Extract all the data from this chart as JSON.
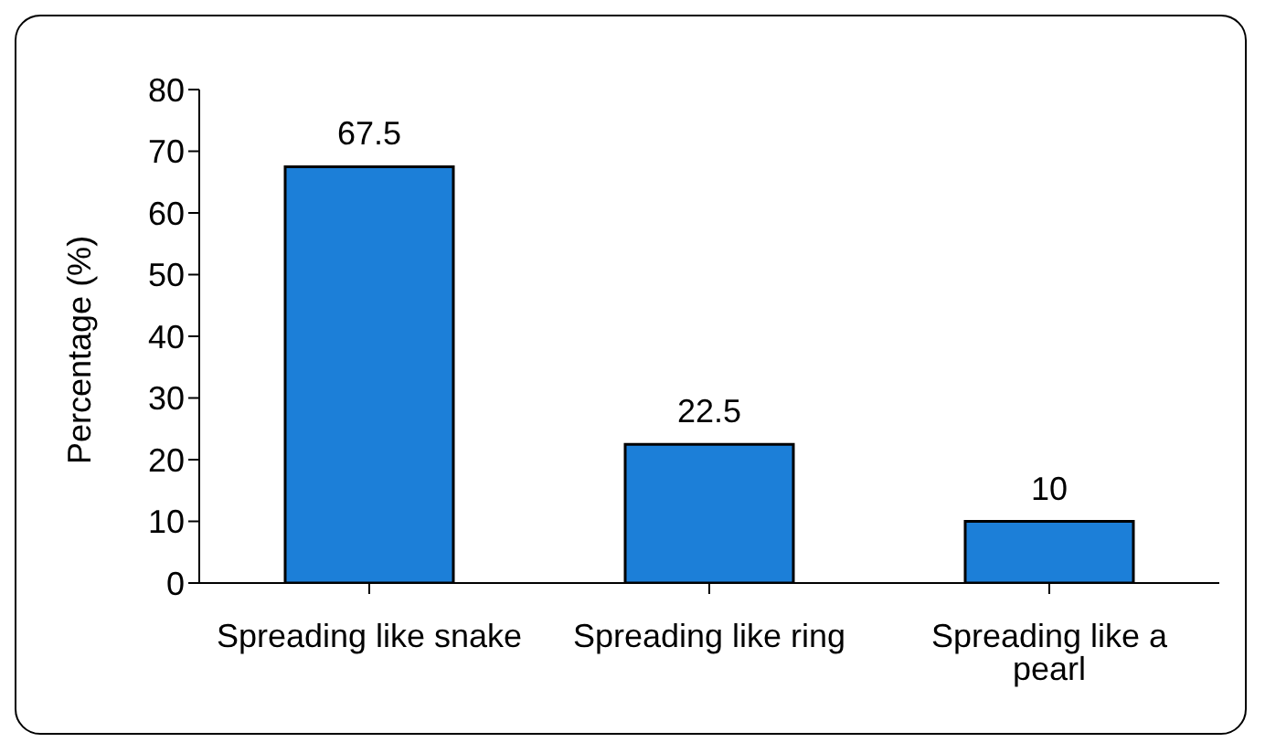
{
  "chart_data": {
    "type": "bar",
    "ylabel": "Percentage (%)",
    "categories": [
      "Spreading like snake",
      "Spreading like ring",
      "Spreading like a pearl"
    ],
    "values": [
      67.5,
      22.5,
      10
    ],
    "color": "#1c7fd8",
    "ylim": [
      0,
      80
    ],
    "yticks": [
      0,
      10,
      20,
      30,
      40,
      50,
      60,
      70,
      80
    ],
    "grid": false,
    "legend": false,
    "data_labels": true
  }
}
